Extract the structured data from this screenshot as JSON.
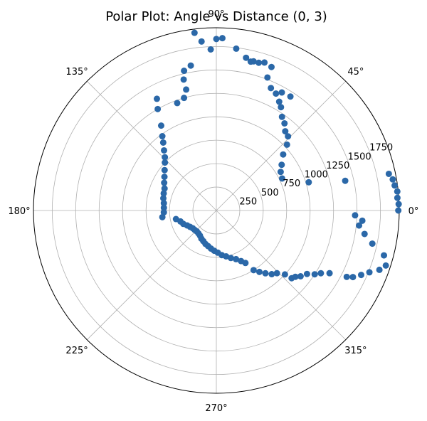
{
  "chart_data": {
    "type": "scatter",
    "projection": "polar",
    "title": "Polar Plot: Angle vs Distance (0, 3)",
    "rmax": 1950,
    "r_ticks": [
      250,
      500,
      750,
      1000,
      1250,
      1500,
      1750
    ],
    "r_tick_labels": [
      "250",
      "500",
      "750",
      "1000",
      "1250",
      "1500",
      "1750"
    ],
    "r_label_angle_deg": 22.5,
    "theta_ticks_deg": [
      0,
      45,
      90,
      135,
      180,
      225,
      270,
      315
    ],
    "theta_tick_labels": [
      "0°",
      "45°",
      "90°",
      "135°",
      "180°",
      "225°",
      "270°",
      "315°"
    ],
    "grid": true,
    "marker_color": "#2b68a8",
    "grid_color": "#b0b0b0",
    "points": [
      {
        "theta_deg": 6,
        "r": 1940
      },
      {
        "theta_deg": 4,
        "r": 1935
      },
      {
        "theta_deg": 2,
        "r": 1945
      },
      {
        "theta_deg": 0,
        "r": 1940
      },
      {
        "theta_deg": 8,
        "r": 1920
      },
      {
        "theta_deg": 10,
        "r": 1910
      },
      {
        "theta_deg": 12,
        "r": 1880
      },
      {
        "theta_deg": 13,
        "r": 1410
      },
      {
        "theta_deg": 17,
        "r": 1030
      },
      {
        "theta_deg": 26,
        "r": 780
      },
      {
        "theta_deg": 31,
        "r": 800
      },
      {
        "theta_deg": 35,
        "r": 850
      },
      {
        "theta_deg": 40,
        "r": 930
      },
      {
        "theta_deg": 43,
        "r": 1030
      },
      {
        "theta_deg": 46,
        "r": 1100
      },
      {
        "theta_deg": 49,
        "r": 1120
      },
      {
        "theta_deg": 52,
        "r": 1180
      },
      {
        "theta_deg": 55,
        "r": 1220
      },
      {
        "theta_deg": 58,
        "r": 1300
      },
      {
        "theta_deg": 57,
        "r": 1450
      },
      {
        "theta_deg": 60,
        "r": 1340
      },
      {
        "theta_deg": 61,
        "r": 1440
      },
      {
        "theta_deg": 63,
        "r": 1400
      },
      {
        "theta_deg": 66,
        "r": 1430
      },
      {
        "theta_deg": 69,
        "r": 1520
      },
      {
        "theta_deg": 69,
        "r": 1640
      },
      {
        "theta_deg": 72,
        "r": 1660
      },
      {
        "theta_deg": 74,
        "r": 1640
      },
      {
        "theta_deg": 76,
        "r": 1640
      },
      {
        "theta_deg": 77,
        "r": 1630
      },
      {
        "theta_deg": 79,
        "r": 1660
      },
      {
        "theta_deg": 83,
        "r": 1740
      },
      {
        "theta_deg": 88,
        "r": 1840
      },
      {
        "theta_deg": 90,
        "r": 1830
      },
      {
        "theta_deg": 92,
        "r": 1720
      },
      {
        "theta_deg": 95,
        "r": 1810
      },
      {
        "theta_deg": 97,
        "r": 1910
      },
      {
        "theta_deg": 100,
        "r": 1570
      },
      {
        "theta_deg": 103,
        "r": 1530
      },
      {
        "theta_deg": 104,
        "r": 1440
      },
      {
        "theta_deg": 104,
        "r": 1330
      },
      {
        "theta_deg": 106,
        "r": 1250
      },
      {
        "theta_deg": 110,
        "r": 1220
      },
      {
        "theta_deg": 118,
        "r": 1350
      },
      {
        "theta_deg": 120,
        "r": 1250
      },
      {
        "theta_deg": 123,
        "r": 1080
      },
      {
        "theta_deg": 126,
        "r": 980
      },
      {
        "theta_deg": 128,
        "r": 920
      },
      {
        "theta_deg": 131,
        "r": 850
      },
      {
        "theta_deg": 134,
        "r": 790
      },
      {
        "theta_deg": 137,
        "r": 750
      },
      {
        "theta_deg": 142,
        "r": 700
      },
      {
        "theta_deg": 147,
        "r": 660
      },
      {
        "theta_deg": 152,
        "r": 630
      },
      {
        "theta_deg": 157,
        "r": 600
      },
      {
        "theta_deg": 162,
        "r": 590
      },
      {
        "theta_deg": 167,
        "r": 580
      },
      {
        "theta_deg": 172,
        "r": 565
      },
      {
        "theta_deg": 177,
        "r": 560
      },
      {
        "theta_deg": 182,
        "r": 560
      },
      {
        "theta_deg": 187,
        "r": 580
      },
      {
        "theta_deg": 192,
        "r": 440
      },
      {
        "theta_deg": 197,
        "r": 400
      },
      {
        "theta_deg": 202,
        "r": 380
      },
      {
        "theta_deg": 207,
        "r": 350
      },
      {
        "theta_deg": 212,
        "r": 330
      },
      {
        "theta_deg": 217,
        "r": 315
      },
      {
        "theta_deg": 222,
        "r": 310
      },
      {
        "theta_deg": 227,
        "r": 305
      },
      {
        "theta_deg": 232,
        "r": 310
      },
      {
        "theta_deg": 237,
        "r": 320
      },
      {
        "theta_deg": 242,
        "r": 340
      },
      {
        "theta_deg": 247,
        "r": 355
      },
      {
        "theta_deg": 252,
        "r": 375
      },
      {
        "theta_deg": 257,
        "r": 390
      },
      {
        "theta_deg": 262,
        "r": 410
      },
      {
        "theta_deg": 267,
        "r": 430
      },
      {
        "theta_deg": 272,
        "r": 450
      },
      {
        "theta_deg": 277,
        "r": 480
      },
      {
        "theta_deg": 282,
        "r": 500
      },
      {
        "theta_deg": 287,
        "r": 530
      },
      {
        "theta_deg": 292,
        "r": 560
      },
      {
        "theta_deg": 296,
        "r": 600
      },
      {
        "theta_deg": 299,
        "r": 640
      },
      {
        "theta_deg": 302,
        "r": 750
      },
      {
        "theta_deg": 305,
        "r": 800
      },
      {
        "theta_deg": 308,
        "r": 850
      },
      {
        "theta_deg": 311,
        "r": 900
      },
      {
        "theta_deg": 314,
        "r": 930
      },
      {
        "theta_deg": 317,
        "r": 1000
      },
      {
        "theta_deg": 318,
        "r": 1080
      },
      {
        "theta_deg": 320,
        "r": 1100
      },
      {
        "theta_deg": 322,
        "r": 1140
      },
      {
        "theta_deg": 325,
        "r": 1180
      },
      {
        "theta_deg": 327,
        "r": 1250
      },
      {
        "theta_deg": 329,
        "r": 1300
      },
      {
        "theta_deg": 331,
        "r": 1380
      },
      {
        "theta_deg": 333,
        "r": 1560
      },
      {
        "theta_deg": 334,
        "r": 1620
      },
      {
        "theta_deg": 336,
        "r": 1690
      },
      {
        "theta_deg": 338,
        "r": 1760
      },
      {
        "theta_deg": 340,
        "r": 1850
      },
      {
        "theta_deg": 342,
        "r": 1900
      },
      {
        "theta_deg": 345,
        "r": 1850
      },
      {
        "theta_deg": 348,
        "r": 1700
      },
      {
        "theta_deg": 351,
        "r": 1600
      },
      {
        "theta_deg": 354,
        "r": 1530
      },
      {
        "theta_deg": 356,
        "r": 1560
      },
      {
        "theta_deg": 358,
        "r": 1480
      }
    ]
  }
}
